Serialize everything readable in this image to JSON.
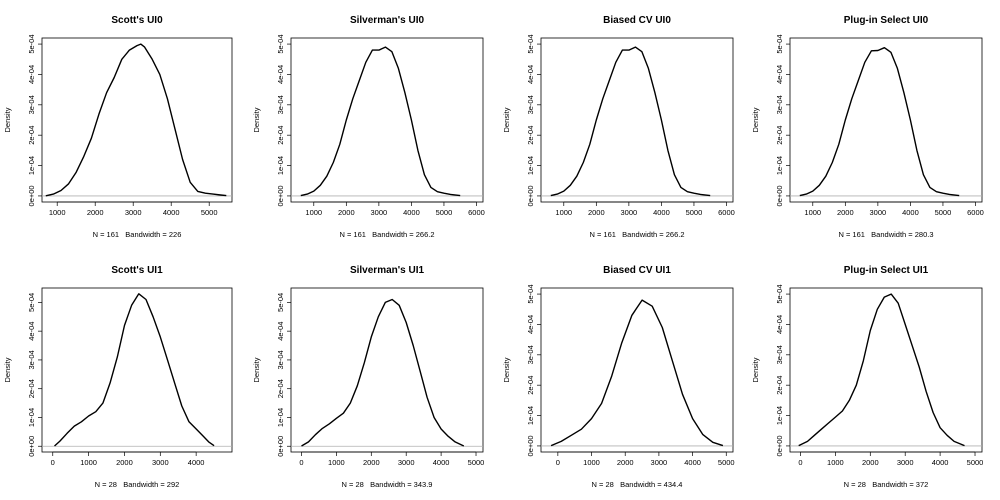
{
  "chart_data": [
    {
      "type": "line",
      "title": "Scott's UI0",
      "ylabel": "Density",
      "xlabel": "N = 161   Bandwidth = 226",
      "xlim": [
        600,
        5600
      ],
      "ylim": [
        -2e-05,
        0.00052
      ],
      "xticks": [
        1000,
        2000,
        3000,
        4000,
        5000
      ],
      "yticks": [
        0,
        0.0001,
        0.0002,
        0.0003,
        0.0004,
        0.0005
      ],
      "ytick_labels": [
        "0e+00",
        "1e-04",
        "2e-04",
        "3e-04",
        "4e-04",
        "5e-04"
      ],
      "x": [
        700,
        900,
        1100,
        1300,
        1500,
        1700,
        1900,
        2100,
        2300,
        2500,
        2700,
        2900,
        3100,
        3200,
        3300,
        3500,
        3700,
        3900,
        4100,
        4300,
        4500,
        4700,
        4900,
        5100,
        5300,
        5450
      ],
      "y": [
        5e-07,
        6e-06,
        1.8e-05,
        4e-05,
        7.8e-05,
        0.00013,
        0.00019,
        0.00027,
        0.00034,
        0.00039,
        0.00045,
        0.00048,
        0.000495,
        0.0005,
        0.00049,
        0.00045,
        0.0004,
        0.00032,
        0.00022,
        0.00012,
        4.5e-05,
        1.5e-05,
        9e-06,
        6e-06,
        3e-06,
        1e-06
      ]
    },
    {
      "type": "line",
      "title": "Silverman's UI0",
      "ylabel": "Density",
      "xlabel": "N = 161   Bandwidth = 266.2",
      "xlim": [
        300,
        6200
      ],
      "ylim": [
        -2e-05,
        0.00052
      ],
      "xticks": [
        1000,
        2000,
        3000,
        4000,
        5000,
        6000
      ],
      "yticks": [
        0,
        0.0001,
        0.0002,
        0.0003,
        0.0004,
        0.0005
      ],
      "ytick_labels": [
        "0e+00",
        "1e-04",
        "2e-04",
        "3e-04",
        "4e-04",
        "5e-04"
      ],
      "x": [
        600,
        800,
        1000,
        1200,
        1400,
        1600,
        1800,
        2000,
        2200,
        2400,
        2600,
        2800,
        3000,
        3200,
        3400,
        3600,
        3800,
        4000,
        4200,
        4400,
        4600,
        4800,
        5000,
        5200,
        5500
      ],
      "y": [
        1e-06,
        6e-06,
        1.6e-05,
        3.5e-05,
        6.5e-05,
        0.00011,
        0.00017,
        0.00025,
        0.00032,
        0.00038,
        0.00044,
        0.00048,
        0.00048,
        0.00049,
        0.000475,
        0.00042,
        0.00034,
        0.00025,
        0.00015,
        7e-05,
        2.8e-05,
        1.4e-05,
        9e-06,
        5e-06,
        1e-06
      ]
    },
    {
      "type": "line",
      "title": "Biased CV UI0",
      "ylabel": "Density",
      "xlabel": "N = 161   Bandwidth = 266.2",
      "xlim": [
        300,
        6200
      ],
      "ylim": [
        -2e-05,
        0.00052
      ],
      "xticks": [
        1000,
        2000,
        3000,
        4000,
        5000,
        6000
      ],
      "yticks": [
        0,
        0.0001,
        0.0002,
        0.0003,
        0.0004,
        0.0005
      ],
      "ytick_labels": [
        "0e+00",
        "1e-04",
        "2e-04",
        "3e-04",
        "4e-04",
        "5e-04"
      ],
      "x": [
        600,
        800,
        1000,
        1200,
        1400,
        1600,
        1800,
        2000,
        2200,
        2400,
        2600,
        2800,
        3000,
        3200,
        3400,
        3600,
        3800,
        4000,
        4200,
        4400,
        4600,
        4800,
        5000,
        5200,
        5500
      ],
      "y": [
        1e-06,
        6e-06,
        1.6e-05,
        3.5e-05,
        6.5e-05,
        0.00011,
        0.00017,
        0.00025,
        0.00032,
        0.00038,
        0.00044,
        0.00048,
        0.00048,
        0.00049,
        0.000475,
        0.00042,
        0.00034,
        0.00025,
        0.00015,
        7e-05,
        2.8e-05,
        1.4e-05,
        9e-06,
        5e-06,
        1e-06
      ]
    },
    {
      "type": "line",
      "title": "Plug-in Select UI0",
      "ylabel": "Density",
      "xlabel": "N = 161   Bandwidth = 280.3",
      "xlim": [
        300,
        6200
      ],
      "ylim": [
        -2e-05,
        0.00052
      ],
      "xticks": [
        1000,
        2000,
        3000,
        4000,
        5000,
        6000
      ],
      "yticks": [
        0,
        0.0001,
        0.0002,
        0.0003,
        0.0004,
        0.0005
      ],
      "ytick_labels": [
        "0e+00",
        "1e-04",
        "2e-04",
        "3e-04",
        "4e-04",
        "5e-04"
      ],
      "x": [
        600,
        800,
        1000,
        1200,
        1400,
        1600,
        1800,
        2000,
        2200,
        2400,
        2600,
        2800,
        3000,
        3200,
        3400,
        3600,
        3800,
        4000,
        4200,
        4400,
        4600,
        4800,
        5000,
        5200,
        5500
      ],
      "y": [
        1e-06,
        6e-06,
        1.6e-05,
        3.5e-05,
        6.5e-05,
        0.00011,
        0.00017,
        0.00025,
        0.00032,
        0.00038,
        0.00044,
        0.000478,
        0.000479,
        0.000488,
        0.000473,
        0.00042,
        0.00034,
        0.00025,
        0.00015,
        7e-05,
        2.8e-05,
        1.4e-05,
        9e-06,
        5e-06,
        1e-06
      ]
    },
    {
      "type": "line",
      "title": "Scott's UI1",
      "ylabel": "Density",
      "xlabel": "N = 28   Bandwidth = 292",
      "xlim": [
        -300,
        5000
      ],
      "ylim": [
        -2e-05,
        0.00055
      ],
      "xticks": [
        0,
        1000,
        2000,
        3000,
        4000
      ],
      "yticks": [
        0,
        0.0001,
        0.0002,
        0.0003,
        0.0004,
        0.0005
      ],
      "ytick_labels": [
        "0e+00",
        "1e-04",
        "2e-04",
        "3e-04",
        "4e-04",
        "5e-04"
      ],
      "x": [
        50,
        200,
        400,
        600,
        800,
        1000,
        1200,
        1400,
        1600,
        1800,
        2000,
        2200,
        2400,
        2600,
        2800,
        3000,
        3200,
        3400,
        3600,
        3800,
        4000,
        4200,
        4350,
        4500
      ],
      "y": [
        1e-06,
        1.8e-05,
        4.5e-05,
        7e-05,
        8.5e-05,
        0.000105,
        0.00012,
        0.00015,
        0.00022,
        0.00031,
        0.00042,
        0.00049,
        0.00053,
        0.00051,
        0.00045,
        0.00038,
        0.0003,
        0.00022,
        0.00014,
        8.5e-05,
        6e-05,
        3.5e-05,
        1.5e-05,
        2e-06
      ]
    },
    {
      "type": "line",
      "title": "Silverman's UI1",
      "ylabel": "Density",
      "xlabel": "N = 28   Bandwidth = 343.9",
      "xlim": [
        -300,
        5200
      ],
      "ylim": [
        -2e-05,
        0.00055
      ],
      "xticks": [
        0,
        1000,
        2000,
        3000,
        4000,
        5000
      ],
      "yticks": [
        0,
        0.0001,
        0.0002,
        0.0003,
        0.0004,
        0.0005
      ],
      "ytick_labels": [
        "0e+00",
        "1e-04",
        "2e-04",
        "3e-04",
        "4e-04",
        "5e-04"
      ],
      "x": [
        0,
        200,
        400,
        600,
        800,
        1000,
        1200,
        1400,
        1600,
        1800,
        2000,
        2200,
        2400,
        2600,
        2800,
        3000,
        3200,
        3400,
        3600,
        3800,
        4000,
        4200,
        4400,
        4650
      ],
      "y": [
        1e-06,
        1.5e-05,
        4e-05,
        6.2e-05,
        7.8e-05,
        9.7e-05,
        0.000115,
        0.00015,
        0.00021,
        0.00029,
        0.00038,
        0.00045,
        0.0005,
        0.00051,
        0.00049,
        0.00043,
        0.00035,
        0.00026,
        0.00017,
        0.0001,
        6e-05,
        3.5e-05,
        1.5e-05,
        1e-06
      ]
    },
    {
      "type": "line",
      "title": "Biased CV UI1",
      "ylabel": "Density",
      "xlabel": "N = 28   Bandwidth = 434.4",
      "xlim": [
        -500,
        5200
      ],
      "ylim": [
        -2e-05,
        0.00052
      ],
      "xticks": [
        0,
        1000,
        2000,
        3000,
        4000,
        5000
      ],
      "yticks": [
        0,
        0.0001,
        0.0002,
        0.0003,
        0.0004,
        0.0005
      ],
      "ytick_labels": [
        "0e+00",
        "1e-04",
        "2e-04",
        "3e-04",
        "4e-04",
        "5e-04"
      ],
      "x": [
        -200,
        100,
        400,
        700,
        1000,
        1300,
        1600,
        1900,
        2200,
        2500,
        2800,
        3100,
        3400,
        3700,
        4000,
        4300,
        4600,
        4900
      ],
      "y": [
        1e-06,
        1.5e-05,
        3.5e-05,
        5.5e-05,
        9e-05,
        0.00014,
        0.00023,
        0.00034,
        0.00043,
        0.00048,
        0.00046,
        0.00039,
        0.00028,
        0.00017,
        9e-05,
        3.8e-05,
        1.2e-05,
        1e-06
      ]
    },
    {
      "type": "line",
      "title": "Plug-in Select UI1",
      "ylabel": "Density",
      "xlabel": "N = 28   Bandwidth = 372",
      "xlim": [
        -300,
        5200
      ],
      "ylim": [
        -2e-05,
        0.00052
      ],
      "xticks": [
        0,
        1000,
        2000,
        3000,
        4000,
        5000
      ],
      "yticks": [
        0,
        0.0001,
        0.0002,
        0.0003,
        0.0004,
        0.0005
      ],
      "ytick_labels": [
        "0e+00",
        "1e-04",
        "2e-04",
        "3e-04",
        "4e-04",
        "5e-04"
      ],
      "x": [
        -50,
        200,
        400,
        600,
        800,
        1000,
        1200,
        1400,
        1600,
        1800,
        2000,
        2200,
        2400,
        2600,
        2800,
        3000,
        3200,
        3400,
        3600,
        3800,
        4000,
        4200,
        4400,
        4700
      ],
      "y": [
        1e-06,
        1.5e-05,
        3.5e-05,
        5.5e-05,
        7.5e-05,
        9.5e-05,
        0.000115,
        0.00015,
        0.0002,
        0.00028,
        0.00038,
        0.00045,
        0.00049,
        0.0005,
        0.00047,
        0.0004,
        0.00033,
        0.00026,
        0.00018,
        0.00011,
        6e-05,
        3.5e-05,
        1.5e-05,
        1e-06
      ]
    }
  ]
}
